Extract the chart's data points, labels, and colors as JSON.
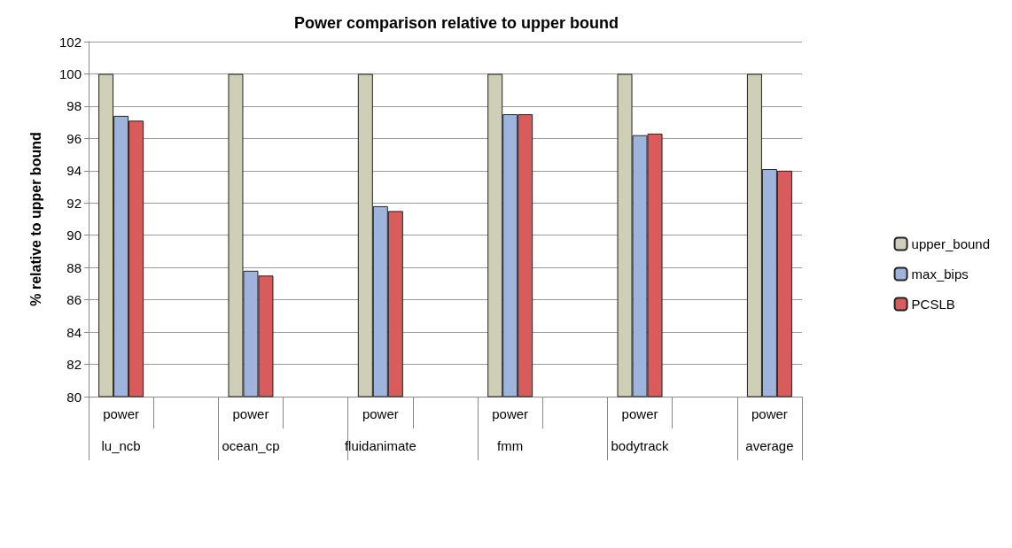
{
  "chart_data": {
    "type": "bar",
    "title": "Power comparison relative to upper bound",
    "ylabel": "% relative to upper bound",
    "categories": [
      "power",
      null,
      "power",
      null,
      "power",
      null,
      "power",
      null,
      "power",
      null,
      "power"
    ],
    "annotations": [
      "lu_ncb",
      "ocean_cp",
      "fluidanimate",
      "fmm",
      "bodytrack",
      "average"
    ],
    "series": [
      {
        "name": "upper_bound",
        "color": "#cfcfb8",
        "values": [
          100,
          null,
          100,
          null,
          100,
          null,
          100,
          null,
          100,
          null,
          100
        ]
      },
      {
        "name": "max_bips",
        "color": "#9fb4dc",
        "values": [
          97.4,
          null,
          87.8,
          null,
          91.8,
          null,
          97.5,
          null,
          96.2,
          null,
          94.1
        ]
      },
      {
        "name": "PCSLB",
        "color": "#d95c5c",
        "values": [
          97.1,
          null,
          87.5,
          null,
          91.5,
          null,
          97.5,
          null,
          96.3,
          null,
          94.0
        ]
      }
    ],
    "ylim": [
      80,
      102
    ],
    "yticks": [
      80,
      82,
      84,
      86,
      88,
      90,
      92,
      94,
      96,
      98,
      100,
      102
    ],
    "grid": "y",
    "legend": "right"
  }
}
